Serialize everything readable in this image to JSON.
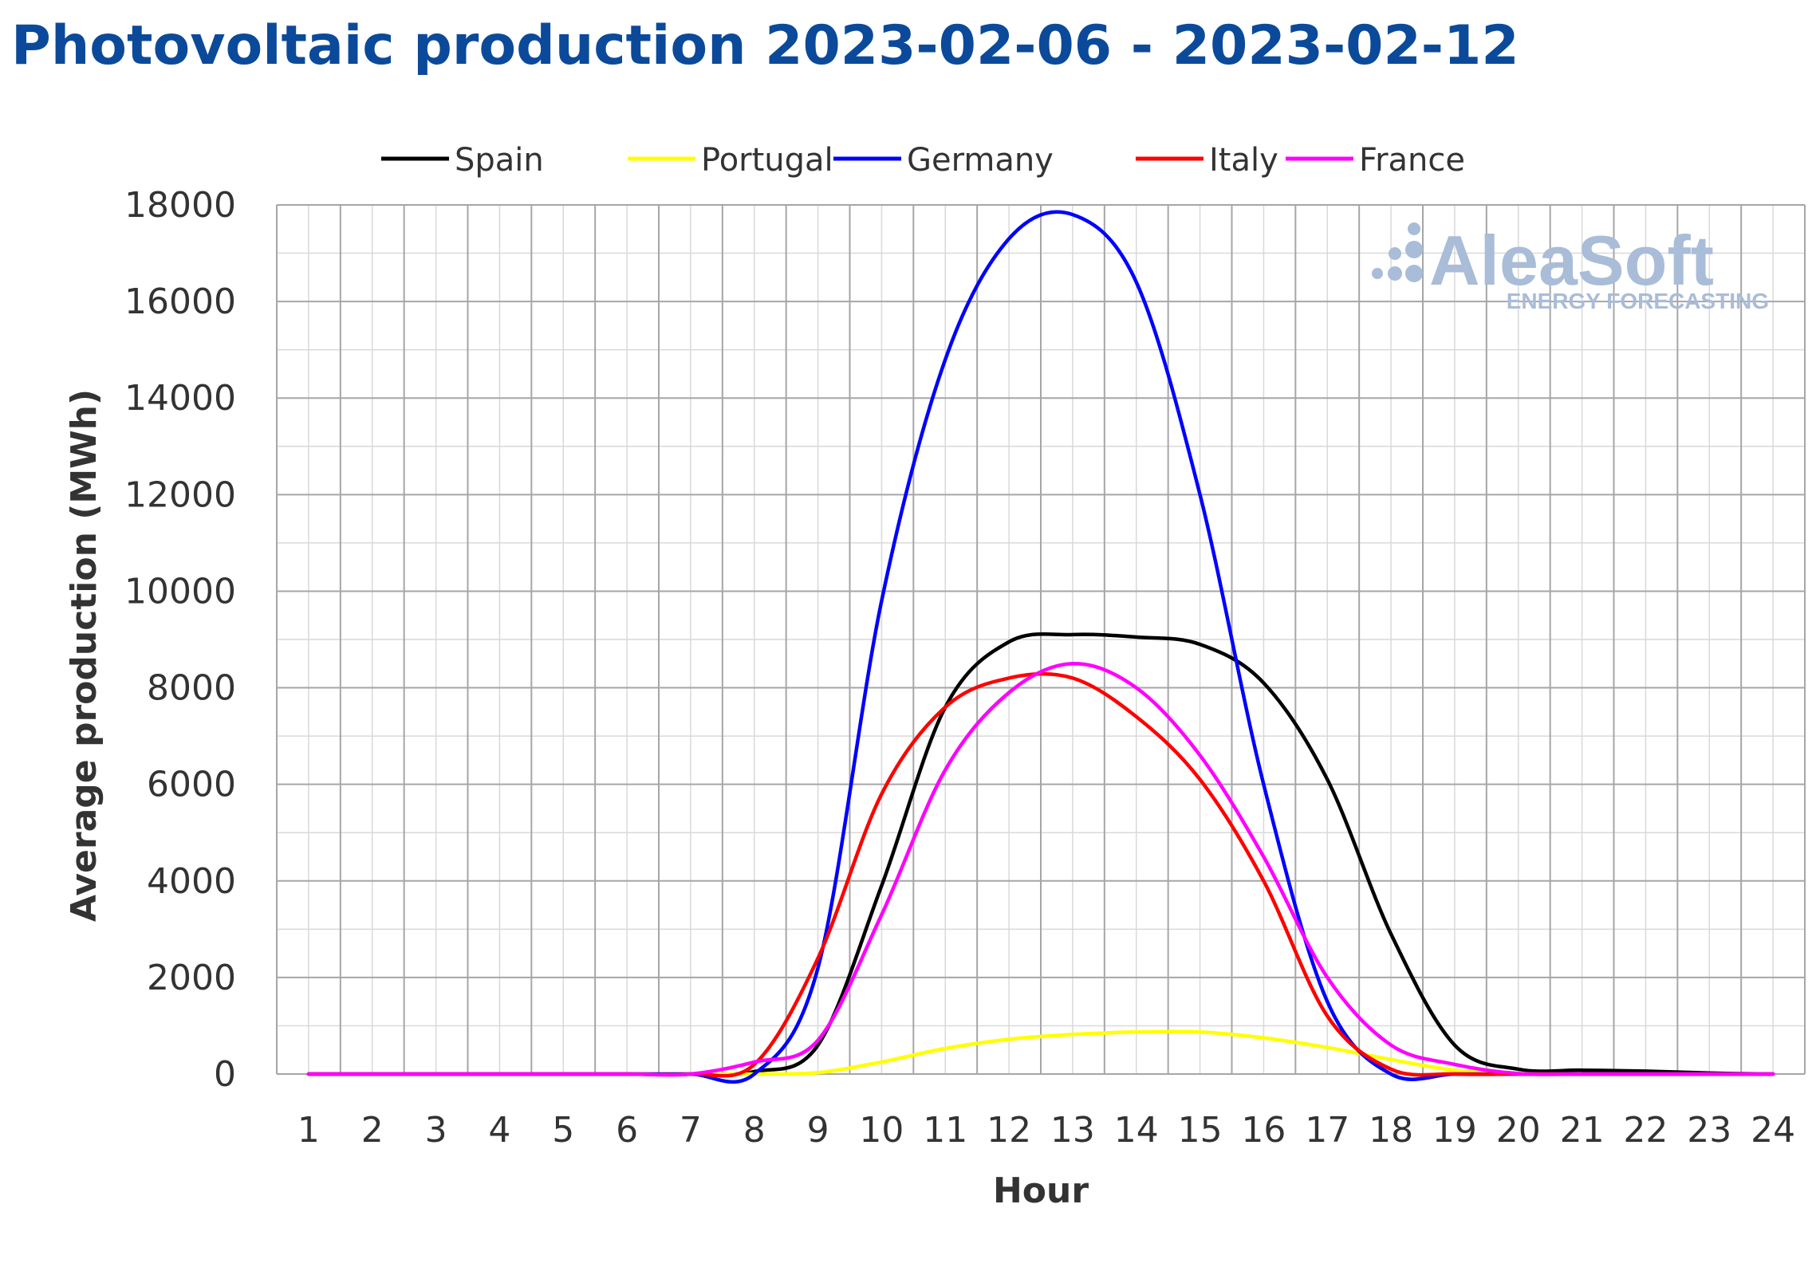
{
  "title": "Photovoltaic production 2023-02-06 - 2023-02-12",
  "watermark": {
    "brand": "AleaSoft",
    "tagline": "ENERGY FORECASTING",
    "color": "#a9bcd8"
  },
  "colors": {
    "title": "#0b4a9a",
    "major_grid": "#a6a6a6",
    "minor_grid": "#d9d9d9",
    "text": "#333333"
  },
  "chart_data": {
    "type": "line",
    "xlabel": "Hour",
    "ylabel": "Average production (MWh)",
    "x": [
      1,
      2,
      3,
      4,
      5,
      6,
      7,
      8,
      9,
      10,
      11,
      12,
      13,
      14,
      15,
      16,
      17,
      18,
      19,
      20,
      21,
      22,
      23,
      24
    ],
    "xlim": [
      0.5,
      24.5
    ],
    "ylim": [
      0,
      18000
    ],
    "yticks": [
      0,
      2000,
      4000,
      6000,
      8000,
      10000,
      12000,
      14000,
      16000,
      18000
    ],
    "grid": true,
    "legend_position": "top",
    "series": [
      {
        "name": "Spain",
        "color": "#000000",
        "values": [
          0,
          0,
          0,
          0,
          0,
          0,
          0,
          50,
          600,
          3900,
          7600,
          8950,
          9100,
          9050,
          8900,
          8100,
          6100,
          2900,
          600,
          100,
          80,
          60,
          20,
          0
        ]
      },
      {
        "name": "Portugal",
        "color": "#ffff00",
        "values": [
          0,
          0,
          0,
          0,
          0,
          0,
          0,
          0,
          30,
          250,
          530,
          720,
          820,
          870,
          870,
          750,
          550,
          300,
          80,
          10,
          0,
          0,
          0,
          0
        ]
      },
      {
        "name": "Germany",
        "color": "#0000ff",
        "values": [
          0,
          0,
          0,
          0,
          0,
          0,
          0,
          0,
          2200,
          9800,
          14800,
          17300,
          17800,
          16400,
          12000,
          6000,
          1500,
          0,
          0,
          0,
          0,
          0,
          0,
          0
        ]
      },
      {
        "name": "Italy",
        "color": "#ff0000",
        "values": [
          0,
          0,
          0,
          0,
          0,
          0,
          0,
          200,
          2400,
          5800,
          7600,
          8200,
          8200,
          7400,
          6100,
          4000,
          1200,
          100,
          0,
          0,
          0,
          0,
          0,
          0
        ]
      },
      {
        "name": "France",
        "color": "#ff00ff",
        "values": [
          0,
          0,
          0,
          0,
          0,
          0,
          0,
          250,
          700,
          3300,
          6300,
          7900,
          8500,
          8000,
          6600,
          4500,
          2000,
          600,
          200,
          10,
          0,
          0,
          0,
          0
        ]
      }
    ]
  }
}
